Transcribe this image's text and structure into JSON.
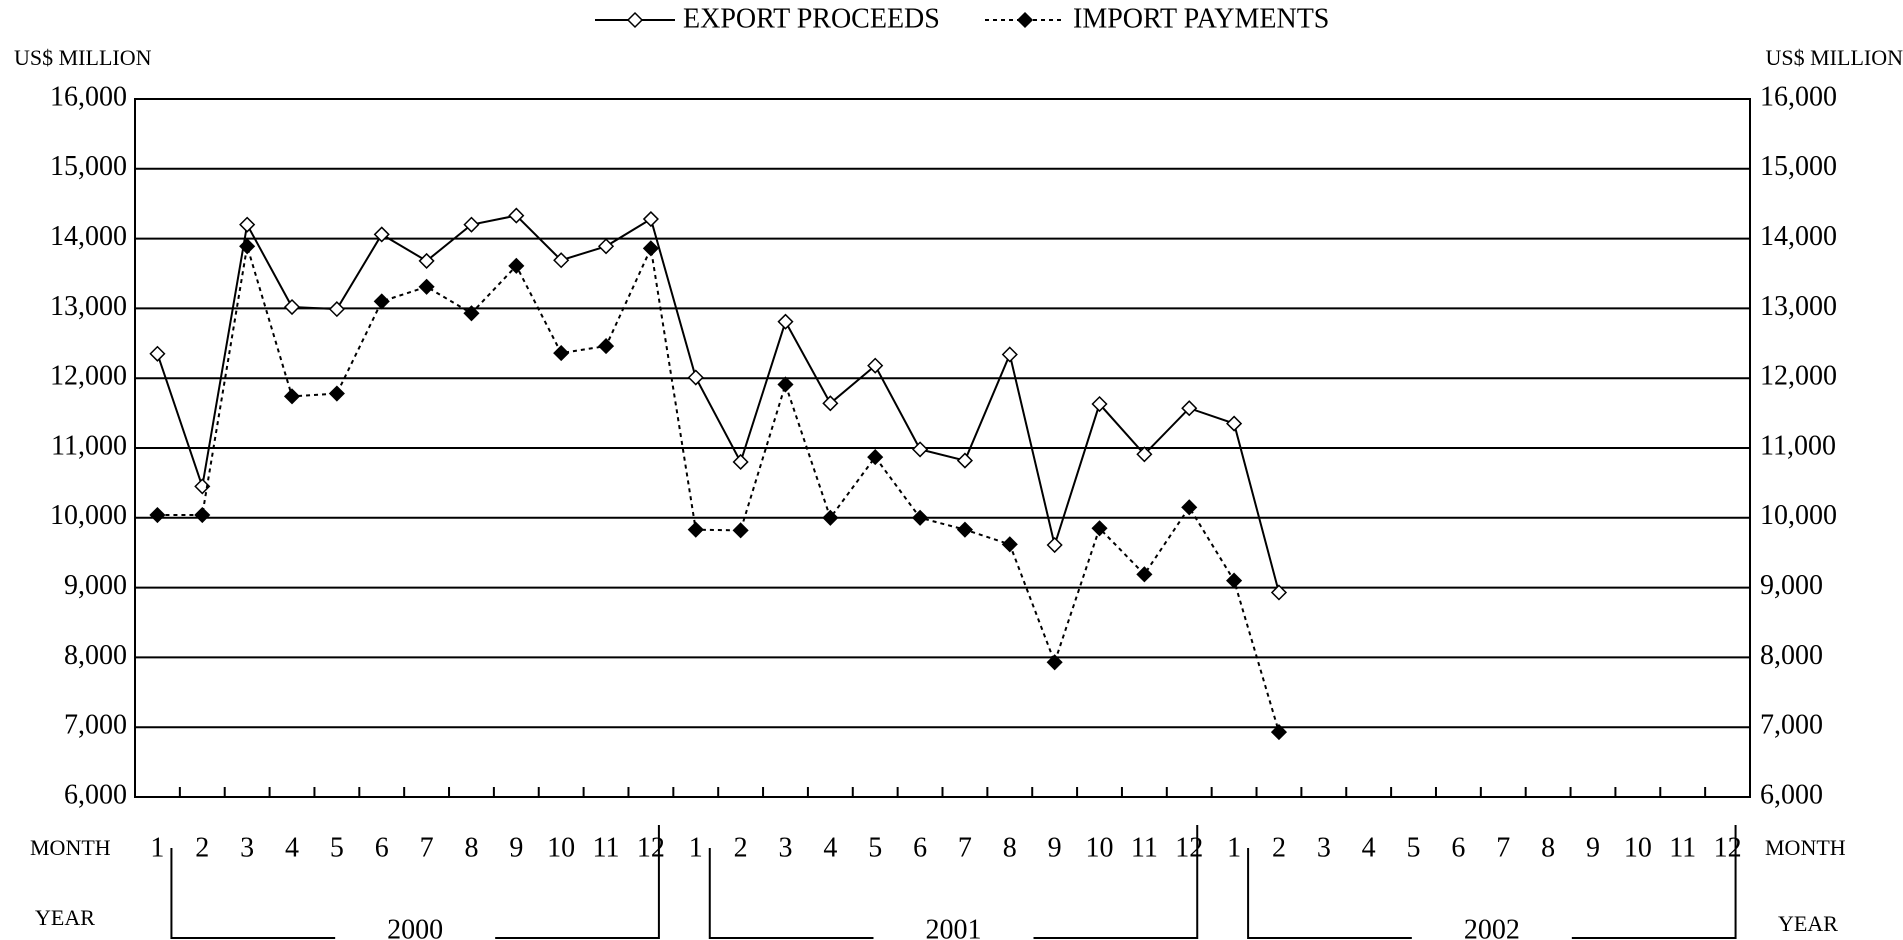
{
  "chart_data": {
    "type": "line",
    "left_axis_label": "US$ MILLION",
    "right_axis_label": "US$ MILLION",
    "month_label": "MONTH",
    "year_label": "YEAR",
    "categories": [
      "1",
      "2",
      "3",
      "4",
      "5",
      "6",
      "7",
      "8",
      "9",
      "10",
      "11",
      "12",
      "1",
      "2",
      "3",
      "4",
      "5",
      "6",
      "7",
      "8",
      "9",
      "10",
      "11",
      "12",
      "1",
      "2",
      "3",
      "4",
      "5",
      "6",
      "7",
      "8",
      "9",
      "10",
      "11",
      "12"
    ],
    "years": [
      "2000",
      "2001",
      "2002"
    ],
    "series": [
      {
        "name": "EXPORT PROCEEDS",
        "color": "#000000",
        "marker": "open-diamond",
        "dash": "solid",
        "values": [
          12350,
          10450,
          14200,
          13020,
          12990,
          14060,
          13680,
          14200,
          14330,
          13690,
          13890,
          14280,
          12010,
          10800,
          12810,
          11640,
          12180,
          10980,
          10820,
          12340,
          9610,
          11630,
          10910,
          11570,
          11350,
          8930,
          null,
          null,
          null,
          null,
          null,
          null,
          null,
          null,
          null,
          null
        ]
      },
      {
        "name": "IMPORT PAYMENTS",
        "color": "#000000",
        "marker": "filled-diamond",
        "dash": "dotted",
        "values": [
          10040,
          10040,
          13890,
          11740,
          11780,
          13100,
          13310,
          12930,
          13610,
          12360,
          12460,
          13860,
          9830,
          9820,
          11910,
          10000,
          10870,
          10000,
          9830,
          9620,
          7930,
          9850,
          9190,
          10150,
          9100,
          6930,
          null,
          null,
          null,
          null,
          null,
          null,
          null,
          null,
          null,
          null
        ]
      }
    ],
    "ylim": [
      6000,
      16000
    ],
    "yticks": [
      {
        "value": 6000,
        "label": "6,000"
      },
      {
        "value": 7000,
        "label": "7,000"
      },
      {
        "value": 8000,
        "label": "8,000"
      },
      {
        "value": 9000,
        "label": "9,000"
      },
      {
        "value": 10000,
        "label": "10,000"
      },
      {
        "value": 11000,
        "label": "11,000"
      },
      {
        "value": 12000,
        "label": "12,000"
      },
      {
        "value": 13000,
        "label": "13,000"
      },
      {
        "value": 14000,
        "label": "14,000"
      },
      {
        "value": 15000,
        "label": "15,000"
      },
      {
        "value": 16000,
        "label": "16,000"
      }
    ],
    "grid": true
  }
}
